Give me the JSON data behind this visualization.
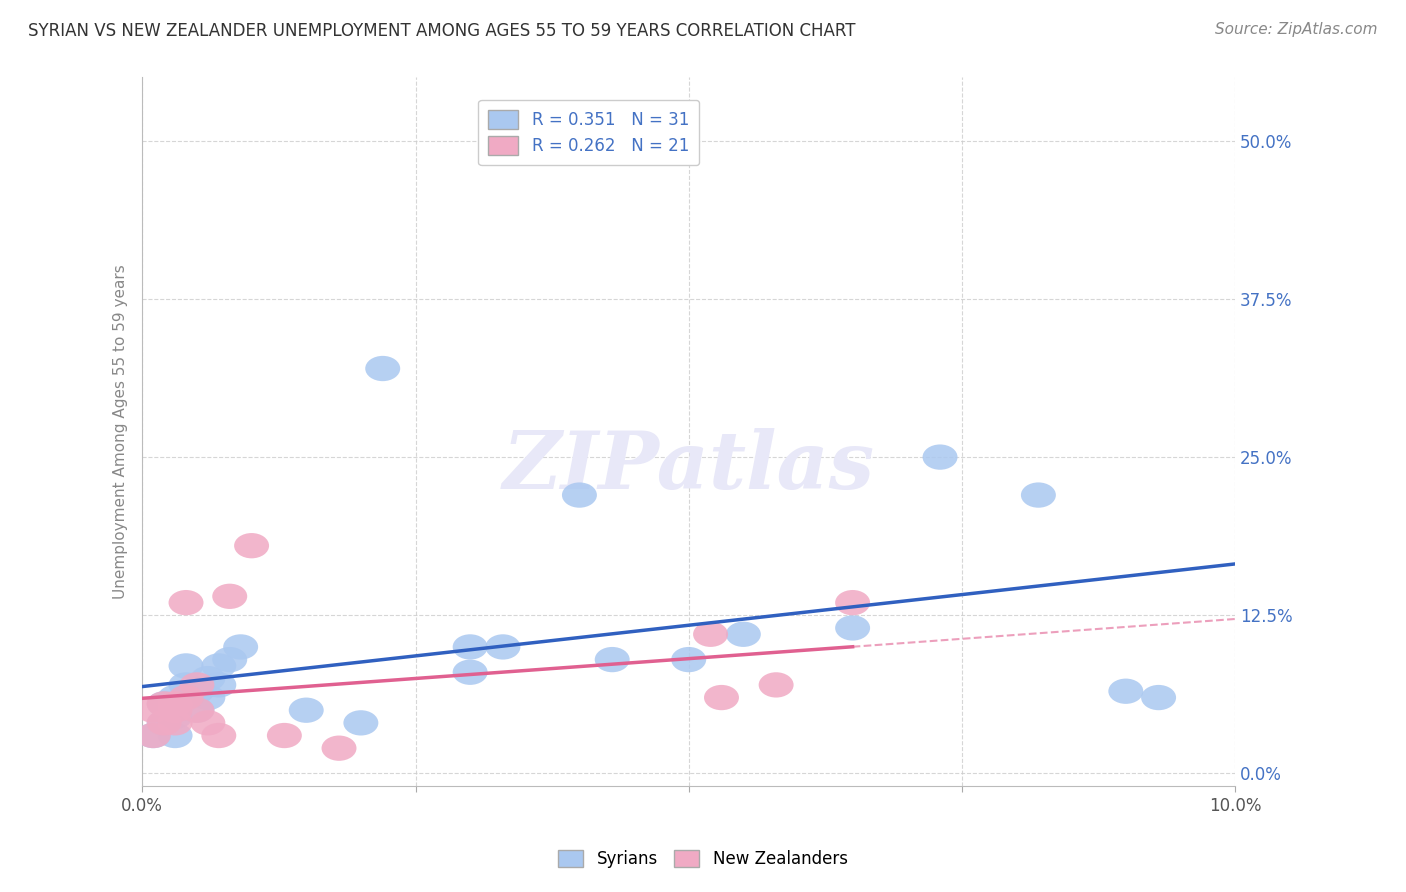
{
  "title": "SYRIAN VS NEW ZEALANDER UNEMPLOYMENT AMONG AGES 55 TO 59 YEARS CORRELATION CHART",
  "source": "Source: ZipAtlas.com",
  "ylabel": "Unemployment Among Ages 55 to 59 years",
  "xlim": [
    0.0,
    0.1
  ],
  "ylim": [
    -0.01,
    0.55
  ],
  "yticks": [
    0.0,
    0.125,
    0.25,
    0.375,
    0.5
  ],
  "ytick_labels": [
    "0.0%",
    "12.5%",
    "25.0%",
    "37.5%",
    "50.0%"
  ],
  "xticks": [
    0.0,
    0.025,
    0.05,
    0.075,
    0.1
  ],
  "xtick_labels": [
    "0.0%",
    "",
    "",
    "",
    "10.0%"
  ],
  "syrian_R": 0.351,
  "syrian_N": 31,
  "nz_R": 0.262,
  "nz_N": 21,
  "syrian_color": "#aac8f0",
  "nz_color": "#f0aac4",
  "syrian_line_color": "#3060c0",
  "nz_line_color": "#e06090",
  "background_color": "#ffffff",
  "tick_label_color": "#4472c4",
  "ylabel_color": "#888888",
  "title_color": "#333333",
  "source_color": "#888888",
  "grid_color": "#cccccc",
  "watermark_color": "#e8e8f8",
  "syrian_x": [
    0.001,
    0.002,
    0.002,
    0.003,
    0.003,
    0.004,
    0.004,
    0.005,
    0.005,
    0.006,
    0.006,
    0.007,
    0.007,
    0.008,
    0.009,
    0.015,
    0.02,
    0.022,
    0.03,
    0.03,
    0.033,
    0.04,
    0.043,
    0.05,
    0.055,
    0.065,
    0.073,
    0.082,
    0.09,
    0.093,
    0.003
  ],
  "syrian_y": [
    0.03,
    0.04,
    0.055,
    0.03,
    0.06,
    0.07,
    0.085,
    0.05,
    0.065,
    0.06,
    0.075,
    0.07,
    0.085,
    0.09,
    0.1,
    0.05,
    0.04,
    0.32,
    0.1,
    0.08,
    0.1,
    0.22,
    0.09,
    0.09,
    0.11,
    0.115,
    0.25,
    0.22,
    0.065,
    0.06,
    0.045
  ],
  "nz_x": [
    0.001,
    0.001,
    0.002,
    0.002,
    0.003,
    0.003,
    0.003,
    0.004,
    0.005,
    0.005,
    0.006,
    0.007,
    0.008,
    0.01,
    0.013,
    0.018,
    0.052,
    0.053,
    0.058,
    0.065,
    0.004
  ],
  "nz_y": [
    0.03,
    0.05,
    0.04,
    0.055,
    0.05,
    0.04,
    0.055,
    0.135,
    0.07,
    0.05,
    0.04,
    0.03,
    0.14,
    0.18,
    0.03,
    0.02,
    0.11,
    0.06,
    0.07,
    0.135,
    0.06
  ]
}
